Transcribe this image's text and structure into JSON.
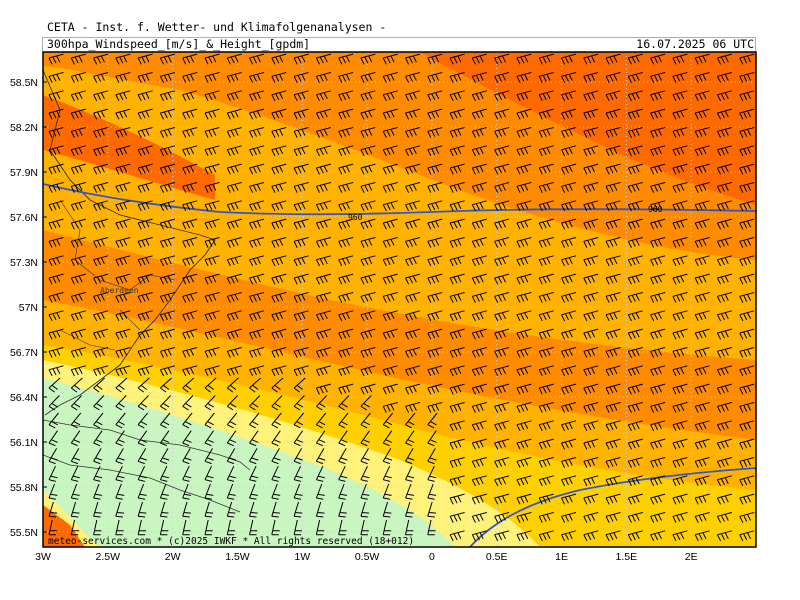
{
  "header": {
    "institute": "CETA - Inst. f. Wetter- und Klimafolgenanalysen -",
    "parameter": "300hpa_Windspeed_[m/s]_&_Height_[gpdm]",
    "valid_time": "16.07.2025 06 UTC"
  },
  "footer": {
    "copyright": "meteo-services.com * (c)2025 IWKF * All rights reserved (18+012)"
  },
  "axes": {
    "lat_labels": [
      "58.5N",
      "58.2N",
      "57.9N",
      "57.6N",
      "57.3N",
      "57N",
      "56.7N",
      "56.4N",
      "56.1N",
      "55.8N",
      "55.5N"
    ],
    "lon_labels": [
      "3W",
      "2.5W",
      "2W",
      "1.5W",
      "1W",
      "0.5W",
      "0",
      "0.5E",
      "1E",
      "1.5E",
      "2E"
    ]
  },
  "map": {
    "lat_range": [
      55.4,
      58.7
    ],
    "lon_range": [
      -3.0,
      2.5
    ],
    "city_label": "Aberdeen",
    "contours": [
      {
        "value": "960",
        "label_lon": -0.6,
        "label_lat": 57.6,
        "color": "#3355cc"
      },
      {
        "value": "960",
        "label_lon": 1.6,
        "label_lat": 57.65,
        "color": "#3355cc"
      }
    ],
    "palette": {
      "light_green": "#c8f5c0",
      "yellow_light": "#fff27a",
      "yellow": "#ffd000",
      "orange_light": "#ffb300",
      "orange": "#ff8c00",
      "red_orange": "#ff6a00",
      "contour": "#3355cc",
      "coast": "#333333"
    }
  }
}
